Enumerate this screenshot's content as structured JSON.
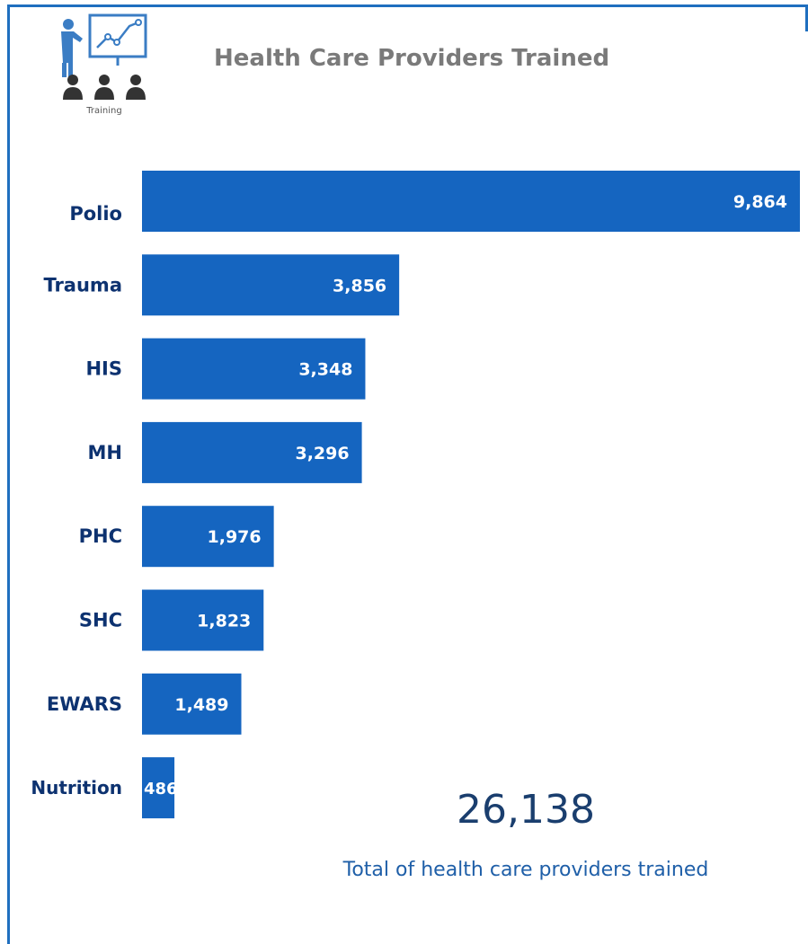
{
  "header": {
    "title": "Health Care Providers Trained",
    "icon_name": "training-presentation-icon",
    "icon_caption": "Training"
  },
  "summary": {
    "total": "26,138",
    "label": "Total of health care providers trained"
  },
  "colors": {
    "bar": "#1565c0",
    "category_label": "#0d3270",
    "value_label": "#ffffff",
    "frame": "#1f6fbf"
  },
  "chart_data": {
    "type": "bar",
    "orientation": "horizontal",
    "title": "Health Care Providers Trained",
    "categories": [
      "Polio",
      "Trauma",
      "HIS",
      "MH",
      "PHC",
      "SHC",
      "EWARS",
      "Nutrition"
    ],
    "values": [
      9864,
      3856,
      3348,
      3296,
      1976,
      1823,
      1489,
      486
    ],
    "value_labels": [
      "9,864",
      "3,856",
      "3,348",
      "3,296",
      "1,976",
      "1,823",
      "1,489",
      "486"
    ],
    "xlim": [
      0,
      9864
    ],
    "grid": false,
    "legend": "none"
  }
}
